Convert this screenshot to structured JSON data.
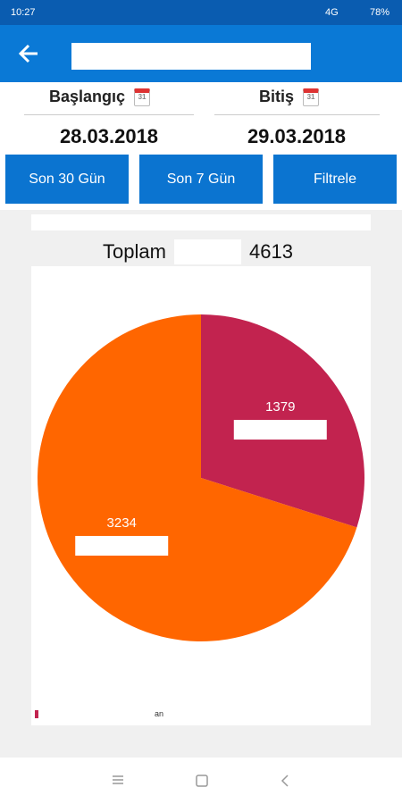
{
  "status_bar": {
    "time": "10:27",
    "network": "4G",
    "battery": "78%"
  },
  "filters": {
    "start_label": "Başlangıç",
    "end_label": "Bitiş",
    "start_date": "28.03.2018",
    "end_date": "29.03.2018",
    "buttons": [
      "Son 30 Gün",
      "Son 7 Gün",
      "Filtrele"
    ]
  },
  "total": {
    "label": "Toplam",
    "value": "4613"
  },
  "legend_text": "an",
  "chart_data": {
    "type": "pie",
    "categories": [
      null,
      null
    ],
    "values": [
      1379,
      3234
    ],
    "colors": [
      "#c2234f",
      "#ff6600"
    ],
    "start_angle": 0,
    "direction": "clockwise"
  }
}
